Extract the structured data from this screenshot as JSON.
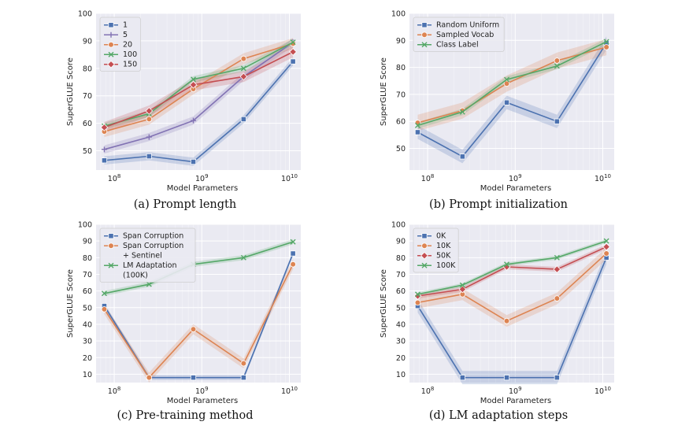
{
  "chart_data": [
    {
      "type": "line",
      "caption": "(a) Prompt length",
      "xlabel": "Model Parameters",
      "ylabel": "SuperGLUE Score",
      "xscale": "log",
      "x": [
        77000000,
        250000000,
        800000000,
        3000000000,
        11000000000
      ],
      "xtick_labels": [
        "10^8",
        "10^9",
        "10^10"
      ],
      "ylim": [
        43,
        100
      ],
      "yticks": [
        50,
        60,
        70,
        80,
        90,
        100
      ],
      "grid": true,
      "legend_position": "top-left",
      "series": [
        {
          "name": "1",
          "color": "#4c72b0",
          "marker": "square",
          "values": [
            46.5,
            48,
            46,
            61.5,
            82.5
          ],
          "band": 1.5
        },
        {
          "name": "5",
          "color": "#8172b3",
          "marker": "plus",
          "values": [
            50.5,
            55,
            61,
            77,
            89.5
          ],
          "band": 1.5
        },
        {
          "name": "20",
          "color": "#dd8452",
          "marker": "circle",
          "values": [
            57,
            61.5,
            72.5,
            83.5,
            89
          ],
          "band": 2
        },
        {
          "name": "100",
          "color": "#55a868",
          "marker": "x",
          "values": [
            59,
            63.5,
            76,
            80,
            89.5
          ],
          "band": 1.2
        },
        {
          "name": "150",
          "color": "#c44e52",
          "marker": "diamond",
          "values": [
            58.5,
            64.5,
            74,
            77,
            86
          ],
          "band": 2
        }
      ]
    },
    {
      "type": "line",
      "caption": "(b) Prompt initialization",
      "xlabel": "Model Parameters",
      "ylabel": "SuperGLUE Score",
      "xscale": "log",
      "x": [
        77000000,
        250000000,
        800000000,
        3000000000,
        11000000000
      ],
      "xtick_labels": [
        "10^8",
        "10^9",
        "10^10"
      ],
      "ylim": [
        42,
        100
      ],
      "yticks": [
        50,
        60,
        70,
        80,
        90,
        100
      ],
      "grid": true,
      "legend_position": "top-left",
      "series": [
        {
          "name": "Random Uniform",
          "color": "#4c72b0",
          "marker": "square",
          "values": [
            56,
            47,
            67,
            60,
            89
          ],
          "band": 2.5
        },
        {
          "name": "Sampled Vocab",
          "color": "#dd8452",
          "marker": "circle",
          "values": [
            59.5,
            64,
            74,
            82.5,
            87.5
          ],
          "band": 3
        },
        {
          "name": "Class Label",
          "color": "#55a868",
          "marker": "x",
          "values": [
            58.5,
            63.5,
            75.5,
            80.5,
            89.5
          ],
          "band": 1.2
        }
      ]
    },
    {
      "type": "line",
      "caption": "(c) Pre-training method",
      "xlabel": "Model Parameters",
      "ylabel": "SuperGLUE Score",
      "xscale": "log",
      "x": [
        77000000,
        250000000,
        800000000,
        3000000000,
        11000000000
      ],
      "xtick_labels": [
        "10^8",
        "10^9",
        "10^10"
      ],
      "ylim": [
        5,
        100
      ],
      "yticks": [
        10,
        20,
        30,
        40,
        50,
        60,
        70,
        80,
        90,
        100
      ],
      "grid": true,
      "legend_position": "top-left",
      "series": [
        {
          "name": "Span Corruption",
          "color": "#4c72b0",
          "marker": "square",
          "values": [
            51,
            8,
            8,
            8,
            82.5
          ],
          "band": 1.5
        },
        {
          "name": "Span Corruption\n+ Sentinel",
          "color": "#dd8452",
          "marker": "circle",
          "values": [
            49,
            8,
            37,
            16.5,
            76
          ],
          "band": 3
        },
        {
          "name": "LM Adaptation\n(100K)",
          "color": "#55a868",
          "marker": "x",
          "values": [
            58.5,
            64,
            76,
            80,
            89.5
          ],
          "band": 1.5
        }
      ]
    },
    {
      "type": "line",
      "caption": "(d) LM adaptation steps",
      "xlabel": "Model Parameters",
      "ylabel": "SuperGLUE Score",
      "xscale": "log",
      "x": [
        77000000,
        250000000,
        800000000,
        3000000000,
        11000000000
      ],
      "xtick_labels": [
        "10^8",
        "10^9",
        "10^10"
      ],
      "ylim": [
        5,
        100
      ],
      "yticks": [
        10,
        20,
        30,
        40,
        50,
        60,
        70,
        80,
        90,
        100
      ],
      "grid": true,
      "legend_position": "top-left",
      "series": [
        {
          "name": "0K",
          "color": "#4c72b0",
          "marker": "square",
          "values": [
            51,
            8,
            8,
            8,
            80
          ],
          "band": 4
        },
        {
          "name": "10K",
          "color": "#dd8452",
          "marker": "circle",
          "values": [
            53,
            58,
            42,
            55.5,
            82.5
          ],
          "band": 3.5
        },
        {
          "name": "50K",
          "color": "#c44e52",
          "marker": "diamond",
          "values": [
            57,
            61,
            74.5,
            73,
            86.5
          ],
          "band": 1.5
        },
        {
          "name": "100K",
          "color": "#55a868",
          "marker": "x",
          "values": [
            58,
            63.5,
            76,
            80,
            90
          ],
          "band": 1.2
        }
      ]
    }
  ]
}
